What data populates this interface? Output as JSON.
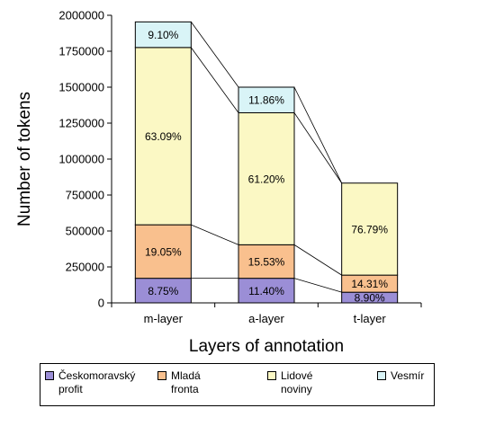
{
  "chart_data": {
    "type": "bar",
    "stacked": true,
    "title": "",
    "xlabel": "Layers of annotation",
    "ylabel": "Number of tokens",
    "ylim": [
      0,
      2000000
    ],
    "yticks": [
      "0",
      "250000",
      "500000",
      "750000",
      "1000000",
      "1250000",
      "1500000",
      "1750000",
      "2000000"
    ],
    "categories": [
      "m-layer",
      "a-layer",
      "t-layer"
    ],
    "series": [
      {
        "name": "Českomoravský profit",
        "color": "#9b8ed6",
        "values": [
          171000,
          171000,
          74000
        ],
        "labels": [
          "8.75%",
          "11.40%",
          "8.90%"
        ]
      },
      {
        "name": "Mladá fronta",
        "color": "#f9c08e",
        "values": [
          372000,
          233000,
          119000
        ],
        "labels": [
          "19.05%",
          "15.53%",
          "14.31%"
        ]
      },
      {
        "name": "Lidové noviny",
        "color": "#fbf8c4",
        "values": [
          1233000,
          918000,
          640000
        ],
        "labels": [
          "63.09%",
          "61.20%",
          "76.79%"
        ]
      },
      {
        "name": "Vesmír",
        "color": "#d9f4f7",
        "values": [
          178000,
          178000,
          0
        ],
        "labels": [
          "9.10%",
          "11.86%",
          ""
        ]
      }
    ],
    "grid": false,
    "legend_position": "bottom"
  },
  "legend": {
    "items": [
      {
        "label": "Českomoravský\nprofit"
      },
      {
        "label": "Mladá fronta"
      },
      {
        "label": "Lidové noviny"
      },
      {
        "label": "Vesmír"
      }
    ]
  }
}
